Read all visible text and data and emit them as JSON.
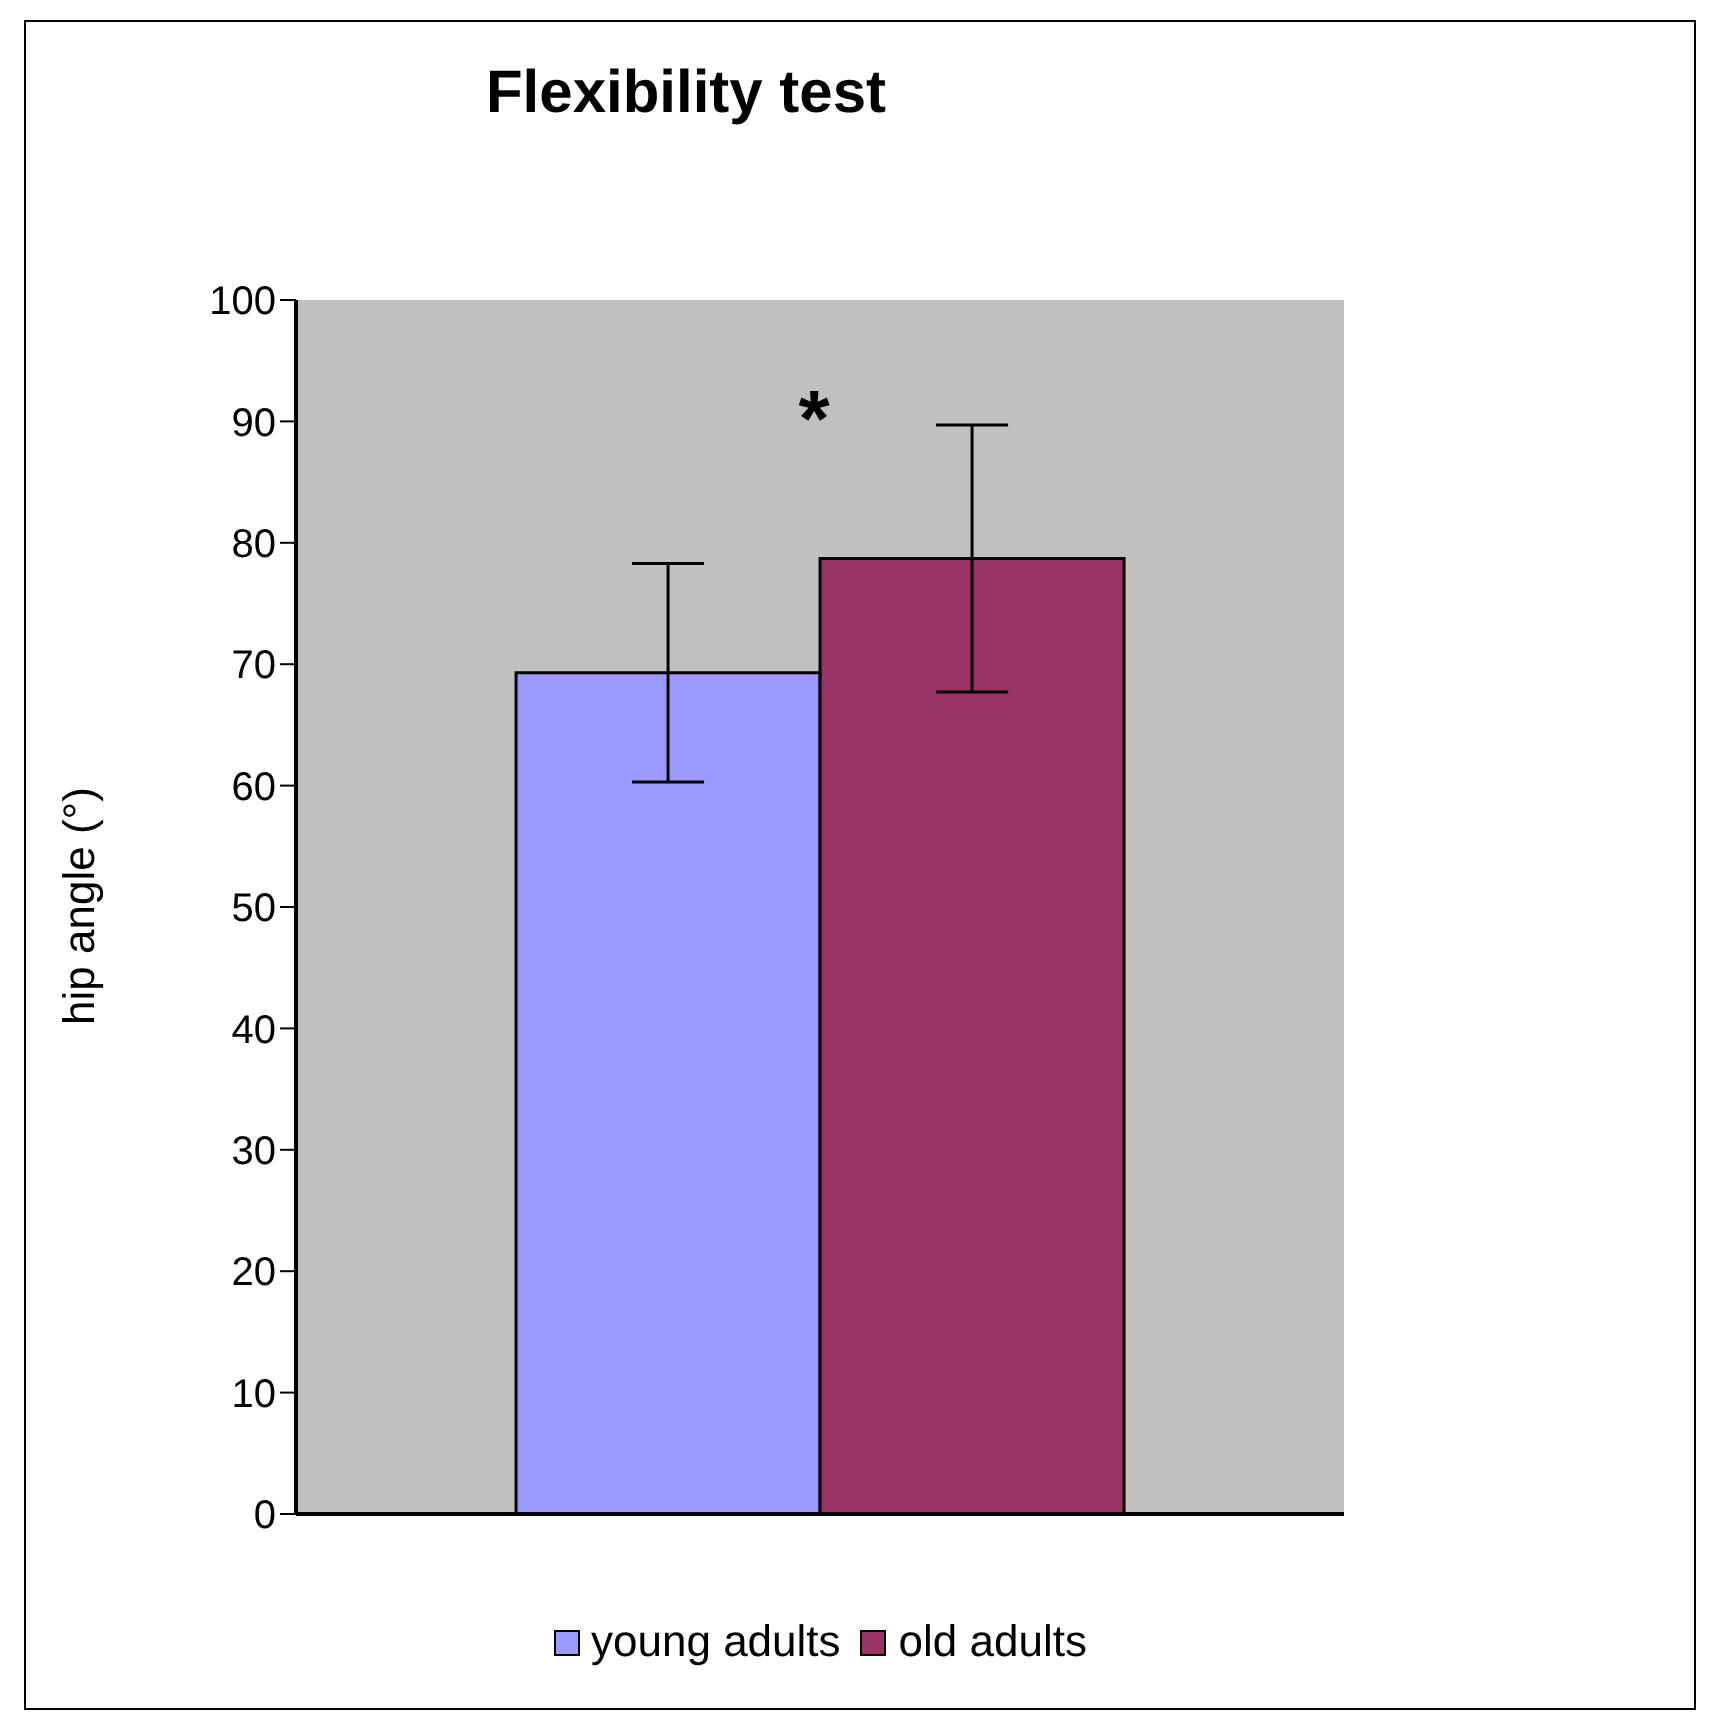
{
  "chart_data": {
    "type": "bar",
    "title": "Flexibility test",
    "ylabel": "hip angle (°)",
    "categories": [
      null
    ],
    "series": [
      {
        "name": "young adults",
        "color": "#9999ff",
        "values": [
          69.3
        ],
        "errors": [
          9
        ]
      },
      {
        "name": "old adults",
        "color": "#993366",
        "values": [
          78.7
        ],
        "errors": [
          11
        ]
      }
    ],
    "ylim": [
      0,
      100
    ],
    "yticks": [
      0,
      10,
      20,
      30,
      40,
      50,
      60,
      70,
      80,
      90,
      100
    ],
    "grid": false,
    "legend": "bottom",
    "annotations": [
      "*"
    ]
  }
}
